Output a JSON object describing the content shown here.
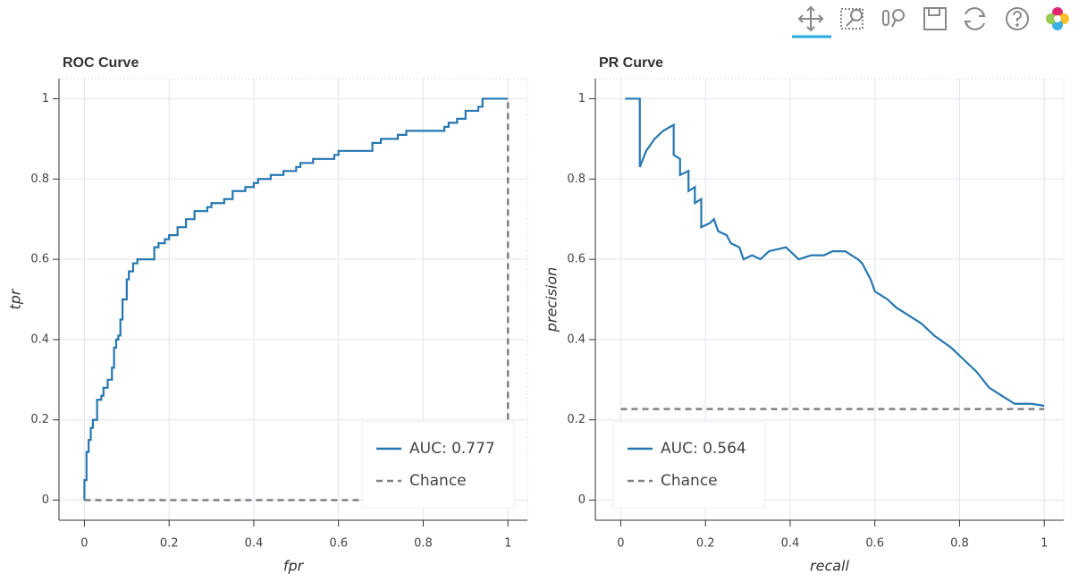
{
  "chart_data": [
    {
      "type": "line",
      "title": "ROC Curve",
      "x_label": "fpr",
      "y_label": "tpr",
      "xlim": [
        -0.06,
        1.046
      ],
      "ylim": [
        -0.05,
        1.05
      ],
      "xticks": [
        0,
        0.2,
        0.4,
        0.6,
        0.8,
        1
      ],
      "yticks": [
        0,
        0.2,
        0.4,
        0.6,
        0.8,
        1
      ],
      "grid": true,
      "legend": "bottom_right",
      "step": true,
      "series": [
        {
          "name": "AUC: 0.777",
          "color": "#2677b0",
          "dash": false,
          "x": [
            0,
            0,
            0.005,
            0.01,
            0.015,
            0.02,
            0.03,
            0.03,
            0.04,
            0.045,
            0.055,
            0.065,
            0.07,
            0.075,
            0.08,
            0.085,
            0.09,
            0.1,
            0.105,
            0.115,
            0.125,
            0.165,
            0.165,
            0.175,
            0.19,
            0.2,
            0.22,
            0.24,
            0.26,
            0.29,
            0.3,
            0.33,
            0.35,
            0.38,
            0.4,
            0.41,
            0.44,
            0.47,
            0.5,
            0.51,
            0.54,
            0.59,
            0.6,
            0.67,
            0.68,
            0.7,
            0.74,
            0.76,
            0.84,
            0.85,
            0.86,
            0.88,
            0.9,
            0.93,
            0.94,
            0.94,
            1
          ],
          "values": [
            0,
            0.05,
            0.12,
            0.15,
            0.18,
            0.2,
            0.22,
            0.25,
            0.26,
            0.28,
            0.3,
            0.33,
            0.38,
            0.4,
            0.41,
            0.45,
            0.5,
            0.55,
            0.57,
            0.59,
            0.6,
            0.6,
            0.63,
            0.64,
            0.65,
            0.66,
            0.68,
            0.7,
            0.72,
            0.73,
            0.74,
            0.75,
            0.77,
            0.78,
            0.79,
            0.8,
            0.81,
            0.82,
            0.83,
            0.84,
            0.85,
            0.86,
            0.87,
            0.87,
            0.89,
            0.9,
            0.91,
            0.92,
            0.92,
            0.93,
            0.94,
            0.95,
            0.97,
            0.98,
            0.99,
            1.0,
            1
          ]
        },
        {
          "name": "Chance",
          "color": "#808080",
          "dash": true,
          "x": [
            0,
            1
          ],
          "values": [
            0,
            1
          ]
        }
      ]
    },
    {
      "type": "line",
      "title": "PR Curve",
      "x_label": "recall",
      "y_label": "precision",
      "xlim": [
        -0.06,
        1.046
      ],
      "ylim": [
        -0.05,
        1.05
      ],
      "xticks": [
        0,
        0.2,
        0.4,
        0.6,
        0.8,
        1
      ],
      "yticks": [
        0,
        0.2,
        0.4,
        0.6,
        0.8,
        1
      ],
      "grid": true,
      "legend": "bottom_left",
      "step": false,
      "series": [
        {
          "name": "AUC: 0.564",
          "color": "#2677b0",
          "dash": false,
          "x": [
            0.01,
            0.045,
            0.045,
            0.06,
            0.08,
            0.1,
            0.125,
            0.125,
            0.14,
            0.14,
            0.16,
            0.16,
            0.175,
            0.175,
            0.19,
            0.19,
            0.21,
            0.22,
            0.23,
            0.25,
            0.26,
            0.28,
            0.29,
            0.31,
            0.33,
            0.35,
            0.39,
            0.41,
            0.42,
            0.45,
            0.48,
            0.5,
            0.53,
            0.56,
            0.57,
            0.59,
            0.6,
            0.63,
            0.65,
            0.68,
            0.71,
            0.74,
            0.78,
            0.81,
            0.84,
            0.87,
            0.9,
            0.93,
            0.97,
            1
          ],
          "values": [
            1,
            1,
            0.83,
            0.87,
            0.9,
            0.92,
            0.935,
            0.86,
            0.85,
            0.81,
            0.82,
            0.77,
            0.78,
            0.74,
            0.75,
            0.68,
            0.69,
            0.7,
            0.67,
            0.66,
            0.64,
            0.63,
            0.6,
            0.61,
            0.6,
            0.62,
            0.63,
            0.61,
            0.6,
            0.61,
            0.61,
            0.62,
            0.62,
            0.6,
            0.59,
            0.55,
            0.52,
            0.5,
            0.48,
            0.46,
            0.44,
            0.41,
            0.38,
            0.35,
            0.32,
            0.28,
            0.26,
            0.24,
            0.24,
            0.235
          ]
        },
        {
          "name": "Chance",
          "color": "#808080",
          "dash": true,
          "x": [
            0,
            1
          ],
          "values": [
            0.227,
            0.227
          ]
        }
      ]
    }
  ]
}
